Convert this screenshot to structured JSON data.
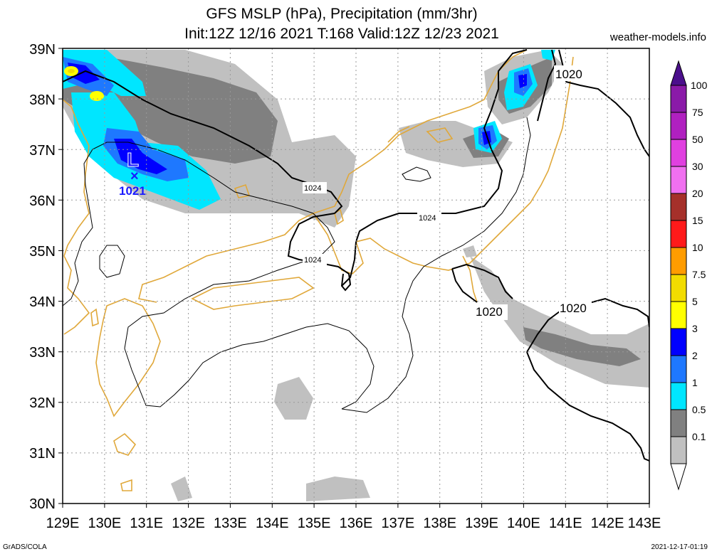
{
  "header": {
    "title_line1": "GFS MSLP (hPa), Precipitation (mm/3hr)",
    "title_line2": "Init:12Z 12/16 2021 T:168 Valid:12Z 12/23 2021",
    "site": "weather-models.info"
  },
  "footer": {
    "left": "GrADS/COLA",
    "right": "2021-12-17-01:19"
  },
  "axes": {
    "lon_labels": [
      "129E",
      "130E",
      "131E",
      "132E",
      "133E",
      "134E",
      "135E",
      "136E",
      "137E",
      "138E",
      "139E",
      "140E",
      "141E",
      "142E",
      "143E"
    ],
    "lat_labels": [
      "39N",
      "38N",
      "37N",
      "36N",
      "35N",
      "34N",
      "33N",
      "32N",
      "31N",
      "30N"
    ]
  },
  "colorbar": {
    "levels": [
      "100",
      "75",
      "50",
      "30",
      "20",
      "15",
      "10",
      "7.5",
      "5",
      "3",
      "2",
      "1",
      "0.5",
      "0.1"
    ],
    "colors": {
      "c100": "#4b0f8c",
      "c75": "#8a1aa8",
      "c50": "#d030d0",
      "c30": "#e060e0",
      "c20": "#a5302a",
      "c15": "#ff1a1a",
      "c10": "#ff9c00",
      "c7_5": "#f2dc00",
      "c5": "#ffff00",
      "c3": "#0000ff",
      "c2": "#1e78ff",
      "c1": "#00e6ff",
      "c0_5": "#808080",
      "c0_1": "#c0c0c0"
    }
  },
  "low_center": {
    "symbol": "L",
    "marker": "×",
    "pressure": "1021"
  },
  "isobar_labels": [
    {
      "text": "1020"
    },
    {
      "text": "1024"
    },
    {
      "text": "1024"
    },
    {
      "text": "1024"
    },
    {
      "text": "1020"
    },
    {
      "text": "1020"
    }
  ],
  "colors": {
    "coastline": "#e0a83a",
    "isobar": "#000000",
    "low_marker": "#1a1aff"
  }
}
